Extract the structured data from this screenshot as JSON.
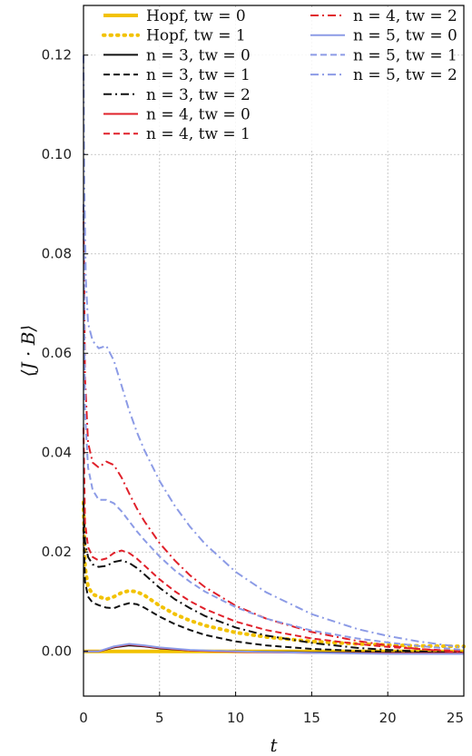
{
  "chart_data": {
    "type": "line",
    "xlabel": "t",
    "ylabel": "⟨J · B⟩",
    "xlim": [
      0,
      25
    ],
    "ylim": [
      -0.009,
      0.13
    ],
    "xticks": [
      0,
      5,
      10,
      15,
      20,
      25
    ],
    "xtick_labels": [
      "0",
      "5",
      "10",
      "15",
      "20",
      "25"
    ],
    "yticks": [
      0.0,
      0.02,
      0.04,
      0.06,
      0.08,
      0.1,
      0.12
    ],
    "ytick_labels": [
      "0.00",
      "0.02",
      "0.04",
      "0.06",
      "0.08",
      "0.10",
      "0.12"
    ],
    "grid": true,
    "legend_position": "top",
    "series": [
      {
        "name": "Hopf, tw = 0",
        "color": "#f2c200",
        "dash": "solid",
        "width": 4,
        "x": [
          0,
          1,
          2,
          3,
          5,
          10,
          15,
          20,
          25
        ],
        "y": [
          0,
          0,
          0,
          0,
          0,
          0,
          0,
          0,
          0
        ]
      },
      {
        "name": "Hopf, tw = 1",
        "color": "#f2c200",
        "dash": "dot",
        "width": 4,
        "x": [
          0,
          0.1,
          0.3,
          0.6,
          1,
          1.5,
          2,
          2.5,
          3,
          3.5,
          4,
          5,
          6,
          7,
          8,
          10,
          12,
          15,
          18,
          20,
          22,
          25
        ],
        "y": [
          0.03,
          0.017,
          0.013,
          0.0115,
          0.011,
          0.0105,
          0.011,
          0.0118,
          0.0122,
          0.012,
          0.0113,
          0.0092,
          0.0075,
          0.0062,
          0.0052,
          0.0038,
          0.0029,
          0.002,
          0.0015,
          0.0013,
          0.0011,
          0.001
        ]
      },
      {
        "name": "n = 3, tw = 0",
        "color": "#111111",
        "dash": "solid",
        "width": 2,
        "x": [
          0,
          1,
          2,
          3,
          4,
          5,
          7,
          10,
          15,
          20,
          25
        ],
        "y": [
          0,
          0,
          0.0008,
          0.0012,
          0.001,
          0.0006,
          0.0002,
          0,
          -0.0002,
          -0.0003,
          -0.0003
        ]
      },
      {
        "name": "n = 3, tw = 1",
        "color": "#111111",
        "dash": "dash",
        "width": 2,
        "x": [
          0,
          0.1,
          0.3,
          0.6,
          1,
          1.5,
          2,
          2.5,
          3,
          3.5,
          4,
          5,
          6,
          7,
          8,
          10,
          12,
          15,
          18,
          20,
          22,
          25
        ],
        "y": [
          0.025,
          0.014,
          0.011,
          0.0098,
          0.0093,
          0.0088,
          0.0087,
          0.0093,
          0.0097,
          0.0095,
          0.0088,
          0.007,
          0.0055,
          0.0043,
          0.0033,
          0.002,
          0.0012,
          0.0005,
          0.0001,
          -0.0001,
          -0.0002,
          -0.0004
        ]
      },
      {
        "name": "n = 3, tw = 2",
        "color": "#111111",
        "dash": "dashdot",
        "width": 2,
        "x": [
          0,
          0.1,
          0.3,
          0.6,
          1,
          1.5,
          2,
          2.5,
          3,
          3.5,
          4,
          5,
          6,
          7,
          8,
          10,
          12,
          15,
          18,
          20,
          22,
          25
        ],
        "y": [
          0.03,
          0.022,
          0.019,
          0.0175,
          0.017,
          0.0172,
          0.018,
          0.0183,
          0.0178,
          0.0168,
          0.0155,
          0.0128,
          0.0105,
          0.0087,
          0.0071,
          0.0048,
          0.0032,
          0.0017,
          0.0007,
          0.0003,
          0,
          -0.0003
        ]
      },
      {
        "name": "n = 4, tw = 0",
        "color": "#e0202a",
        "dash": "solid",
        "width": 2,
        "x": [
          0,
          1,
          2,
          3,
          4,
          5,
          7,
          10,
          15,
          20,
          25
        ],
        "y": [
          0,
          0,
          0.0009,
          0.0014,
          0.0011,
          0.0007,
          0.0002,
          -0.0001,
          -0.0003,
          -0.0004,
          -0.0004
        ]
      },
      {
        "name": "n = 4, tw = 1",
        "color": "#e0202a",
        "dash": "dash",
        "width": 2,
        "x": [
          0,
          0.1,
          0.3,
          0.6,
          1,
          1.5,
          2,
          2.5,
          3,
          3.5,
          4,
          5,
          6,
          7,
          8,
          10,
          12,
          15,
          18,
          20,
          22,
          25
        ],
        "y": [
          0.045,
          0.026,
          0.021,
          0.019,
          0.0183,
          0.0187,
          0.0198,
          0.0203,
          0.0198,
          0.0187,
          0.0173,
          0.0145,
          0.0121,
          0.0101,
          0.0085,
          0.006,
          0.0043,
          0.0026,
          0.0015,
          0.0009,
          0.0005,
          0
        ]
      },
      {
        "name": "n = 4, tw = 2",
        "color": "#e0202a",
        "dash": "dashdot",
        "width": 2,
        "x": [
          0,
          0.1,
          0.3,
          0.6,
          1,
          1.5,
          2,
          2.5,
          3,
          3.5,
          4,
          5,
          6,
          7,
          8,
          10,
          12,
          15,
          18,
          20,
          22,
          25
        ],
        "y": [
          0.09,
          0.055,
          0.042,
          0.038,
          0.037,
          0.0382,
          0.0375,
          0.035,
          0.0318,
          0.0288,
          0.0262,
          0.0218,
          0.0183,
          0.0153,
          0.0129,
          0.0092,
          0.0066,
          0.0039,
          0.0021,
          0.0012,
          0.0005,
          -0.0003
        ]
      },
      {
        "name": "n = 5, tw = 0",
        "color": "#8c9be6",
        "dash": "solid",
        "width": 2,
        "x": [
          0,
          1,
          2,
          3,
          4,
          5,
          7,
          10,
          15,
          20,
          25
        ],
        "y": [
          0,
          0,
          0.001,
          0.0015,
          0.0012,
          0.0008,
          0.0003,
          0,
          -0.0003,
          -0.0005,
          -0.0005
        ]
      },
      {
        "name": "n = 5, tw = 1",
        "color": "#8c9be6",
        "dash": "dash",
        "width": 2,
        "x": [
          0,
          0.1,
          0.3,
          0.6,
          1,
          1.5,
          2,
          2.5,
          3,
          3.5,
          4,
          5,
          6,
          7,
          8,
          10,
          12,
          15,
          18,
          20,
          22,
          25
        ],
        "y": [
          0.09,
          0.048,
          0.037,
          0.0325,
          0.0305,
          0.0305,
          0.0298,
          0.0282,
          0.0262,
          0.0242,
          0.0224,
          0.0191,
          0.0163,
          0.014,
          0.012,
          0.0089,
          0.0066,
          0.0042,
          0.0026,
          0.0018,
          0.0011,
          0.0003
        ]
      },
      {
        "name": "n = 5, tw = 2",
        "color": "#8c9be6",
        "dash": "dashdot",
        "width": 2,
        "x": [
          0,
          0.05,
          0.15,
          0.3,
          0.6,
          1,
          1.5,
          2,
          2.5,
          3,
          3.5,
          4,
          5,
          6,
          7,
          8,
          10,
          12,
          15,
          18,
          20,
          22,
          25
        ],
        "y": [
          0.12,
          0.095,
          0.075,
          0.066,
          0.0625,
          0.061,
          0.0615,
          0.0585,
          0.0535,
          0.0485,
          0.0442,
          0.0405,
          0.0343,
          0.0293,
          0.0251,
          0.0216,
          0.016,
          0.0119,
          0.0075,
          0.0045,
          0.0031,
          0.002,
          0.0008
        ]
      }
    ]
  }
}
